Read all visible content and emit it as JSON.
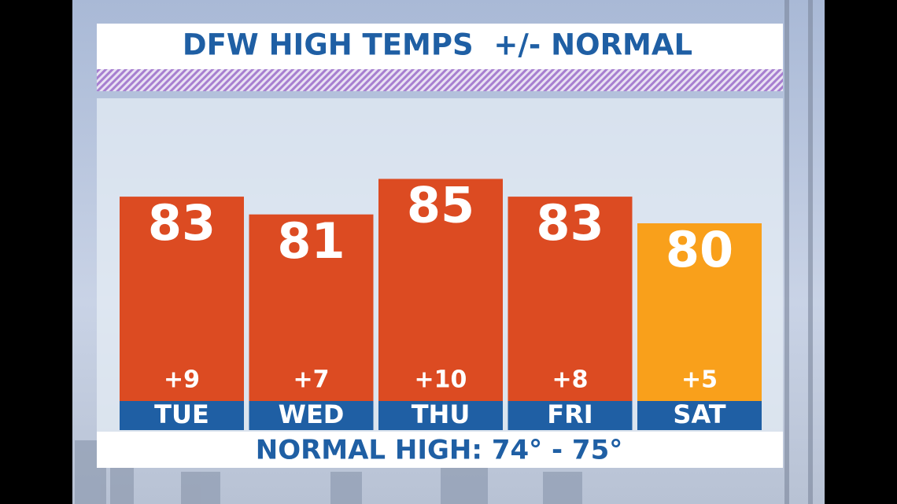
{
  "chart_data": {
    "type": "bar",
    "title": "DFW HIGH TEMPS  +/- NORMAL",
    "categories": [
      "TUE",
      "WED",
      "THU",
      "FRI",
      "SAT"
    ],
    "values": [
      83,
      81,
      85,
      83,
      80
    ],
    "colors": [
      "#dc4b22",
      "#dc4b22",
      "#dc4b22",
      "#dc4b22",
      "#f9a01b"
    ],
    "departures": {
      "values": [
        9,
        7,
        10,
        8,
        5
      ],
      "value_labels": [
        "+9",
        "+7",
        "+10",
        "+8",
        "+5"
      ]
    },
    "ylim": [
      60,
      95
    ],
    "footer": "NORMAL HIGH: 74° - 75°"
  }
}
